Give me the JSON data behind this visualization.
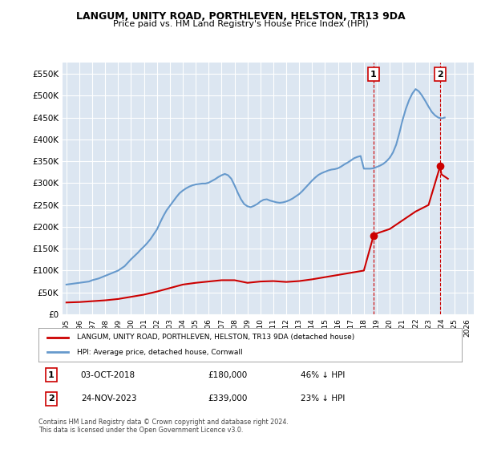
{
  "title": "LANGUM, UNITY ROAD, PORTHLEVEN, HELSTON, TR13 9DA",
  "subtitle": "Price paid vs. HM Land Registry's House Price Index (HPI)",
  "legend_label_red": "LANGUM, UNITY ROAD, PORTHLEVEN, HELSTON, TR13 9DA (detached house)",
  "legend_label_blue": "HPI: Average price, detached house, Cornwall",
  "annotation1_label": "1",
  "annotation1_date": "03-OCT-2018",
  "annotation1_price": "£180,000",
  "annotation1_hpi": "46% ↓ HPI",
  "annotation1_year": 2018.75,
  "annotation1_value": 180000,
  "annotation2_label": "2",
  "annotation2_date": "24-NOV-2023",
  "annotation2_price": "£339,000",
  "annotation2_hpi": "23% ↓ HPI",
  "annotation2_year": 2023.9,
  "annotation2_value": 339000,
  "footer": "Contains HM Land Registry data © Crown copyright and database right 2024.\nThis data is licensed under the Open Government Licence v3.0.",
  "ylim": [
    0,
    575000
  ],
  "xlim_start": 1995,
  "xlim_end": 2026.5,
  "background_color": "#ffffff",
  "plot_bg_color": "#dce6f1",
  "grid_color": "#ffffff",
  "red_color": "#cc0000",
  "blue_color": "#6699cc",
  "dashed_color": "#cc0000",
  "yticks": [
    0,
    50000,
    100000,
    150000,
    200000,
    250000,
    300000,
    350000,
    400000,
    450000,
    500000,
    550000
  ],
  "xticks": [
    1995,
    1996,
    1997,
    1998,
    1999,
    2000,
    2001,
    2002,
    2003,
    2004,
    2005,
    2006,
    2007,
    2008,
    2009,
    2010,
    2011,
    2012,
    2013,
    2014,
    2015,
    2016,
    2017,
    2018,
    2019,
    2020,
    2021,
    2022,
    2023,
    2024,
    2025,
    2026
  ],
  "hpi_years": [
    1995,
    1995.25,
    1995.5,
    1995.75,
    1996,
    1996.25,
    1996.5,
    1996.75,
    1997,
    1997.25,
    1997.5,
    1997.75,
    1998,
    1998.25,
    1998.5,
    1998.75,
    1999,
    1999.25,
    1999.5,
    1999.75,
    2000,
    2000.25,
    2000.5,
    2000.75,
    2001,
    2001.25,
    2001.5,
    2001.75,
    2002,
    2002.25,
    2002.5,
    2002.75,
    2003,
    2003.25,
    2003.5,
    2003.75,
    2004,
    2004.25,
    2004.5,
    2004.75,
    2005,
    2005.25,
    2005.5,
    2005.75,
    2006,
    2006.25,
    2006.5,
    2006.75,
    2007,
    2007.25,
    2007.5,
    2007.75,
    2008,
    2008.25,
    2008.5,
    2008.75,
    2009,
    2009.25,
    2009.5,
    2009.75,
    2010,
    2010.25,
    2010.5,
    2010.75,
    2011,
    2011.25,
    2011.5,
    2011.75,
    2012,
    2012.25,
    2012.5,
    2012.75,
    2013,
    2013.25,
    2013.5,
    2013.75,
    2014,
    2014.25,
    2014.5,
    2014.75,
    2015,
    2015.25,
    2015.5,
    2015.75,
    2016,
    2016.25,
    2016.5,
    2016.75,
    2017,
    2017.25,
    2017.5,
    2017.75,
    2018,
    2018.25,
    2018.5,
    2018.75,
    2019,
    2019.25,
    2019.5,
    2019.75,
    2020,
    2020.25,
    2020.5,
    2020.75,
    2021,
    2021.25,
    2021.5,
    2021.75,
    2022,
    2022.25,
    2022.5,
    2022.75,
    2023,
    2023.25,
    2023.5,
    2023.75,
    2024,
    2024.25
  ],
  "hpi_values": [
    68000,
    69000,
    70000,
    71000,
    72000,
    73000,
    74000,
    75000,
    78000,
    80000,
    82000,
    85000,
    88000,
    91000,
    94000,
    97000,
    100000,
    105000,
    110000,
    118000,
    126000,
    133000,
    140000,
    148000,
    155000,
    163000,
    172000,
    183000,
    194000,
    210000,
    225000,
    238000,
    248000,
    258000,
    268000,
    277000,
    283000,
    288000,
    292000,
    295000,
    297000,
    298000,
    299000,
    299000,
    301000,
    305000,
    309000,
    314000,
    318000,
    321000,
    318000,
    310000,
    295000,
    278000,
    263000,
    252000,
    247000,
    245000,
    248000,
    252000,
    258000,
    262000,
    263000,
    260000,
    258000,
    256000,
    255000,
    256000,
    258000,
    261000,
    265000,
    270000,
    275000,
    282000,
    290000,
    298000,
    306000,
    313000,
    319000,
    323000,
    326000,
    329000,
    331000,
    332000,
    334000,
    338000,
    343000,
    347000,
    352000,
    357000,
    360000,
    362000,
    333000,
    333000,
    333000,
    334000,
    337000,
    340000,
    344000,
    350000,
    358000,
    370000,
    388000,
    415000,
    445000,
    470000,
    490000,
    505000,
    515000,
    510000,
    500000,
    488000,
    475000,
    463000,
    455000,
    450000,
    448000,
    450000
  ],
  "red_years": [
    1995.0,
    1996.0,
    1997.0,
    1998.0,
    1999.0,
    2000.0,
    2001.0,
    2002.0,
    2003.0,
    2004.0,
    2005.0,
    2006.0,
    2007.0,
    2008.0,
    2009.0,
    2010.0,
    2011.0,
    2012.0,
    2013.0,
    2014.0,
    2015.0,
    2016.0,
    2017.0,
    2018.0,
    2018.75,
    2019.0,
    2020.0,
    2021.0,
    2022.0,
    2023.0,
    2023.9,
    2024.0,
    2024.5
  ],
  "red_values": [
    27000,
    28000,
    30000,
    32000,
    35000,
    40000,
    45000,
    52000,
    60000,
    68000,
    72000,
    75000,
    78000,
    78000,
    72000,
    75000,
    76000,
    74000,
    76000,
    80000,
    85000,
    90000,
    95000,
    100000,
    180000,
    185000,
    195000,
    215000,
    235000,
    250000,
    339000,
    320000,
    310000
  ]
}
